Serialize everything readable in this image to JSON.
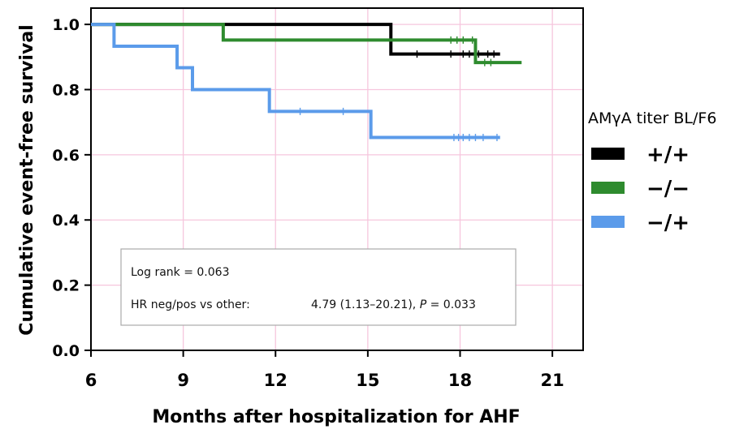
{
  "chart_data": {
    "type": "line",
    "step": true,
    "xlabel": "Months after hospitalization for AHF",
    "ylabel": "Cumulative event-free survival",
    "xlim": [
      6,
      22
    ],
    "ylim": [
      0,
      1.05
    ],
    "xticks": [
      6,
      9,
      12,
      15,
      18,
      21
    ],
    "xtick_labels": [
      "6",
      "9",
      "12",
      "15",
      "18",
      "21"
    ],
    "yticks": [
      0,
      0.2,
      0.4,
      0.6,
      0.8,
      1.0
    ],
    "ytick_labels": [
      "0.0",
      "0.2",
      "0.4",
      "0.6",
      "0.8",
      "1.0"
    ],
    "grid": true,
    "legend_title": "AMγA titer BL/F6",
    "legend_position": "right",
    "series": [
      {
        "name": "+/+",
        "color": "#000000",
        "x": [
          6,
          15.75,
          15.75,
          19.3
        ],
        "y": [
          1.0,
          1.0,
          0.909,
          0.909
        ],
        "censored_x": [
          16.6,
          17.7,
          18.1,
          18.3,
          18.6,
          18.9,
          19.1
        ]
      },
      {
        "name": "−/−",
        "color": "#2e8b2e",
        "x": [
          6,
          10.3,
          10.3,
          18.5,
          18.5,
          20.0
        ],
        "y": [
          1.0,
          1.0,
          0.952,
          0.952,
          0.883,
          0.883
        ],
        "censored_x": [
          17.7,
          17.9,
          18.1,
          18.4,
          18.8,
          19.0
        ]
      },
      {
        "name": "−/+",
        "color": "#5b9bea",
        "x": [
          6,
          6.75,
          6.75,
          8.8,
          8.8,
          9.3,
          9.3,
          11.8,
          11.8,
          15.1,
          15.1,
          19.3
        ],
        "y": [
          1.0,
          1.0,
          0.933,
          0.933,
          0.867,
          0.867,
          0.8,
          0.8,
          0.733,
          0.733,
          0.653,
          0.653
        ],
        "censored_x": [
          12.8,
          14.2,
          17.8,
          17.95,
          18.1,
          18.3,
          18.5,
          18.75,
          19.2
        ]
      }
    ],
    "annotations": {
      "log_rank": "Log rank = 0.063",
      "hr_label": "HR neg/pos vs other:",
      "hr_value": "4.79 (1.13–20.21), ",
      "p_label": "P",
      "p_value": " = 0.033"
    }
  }
}
